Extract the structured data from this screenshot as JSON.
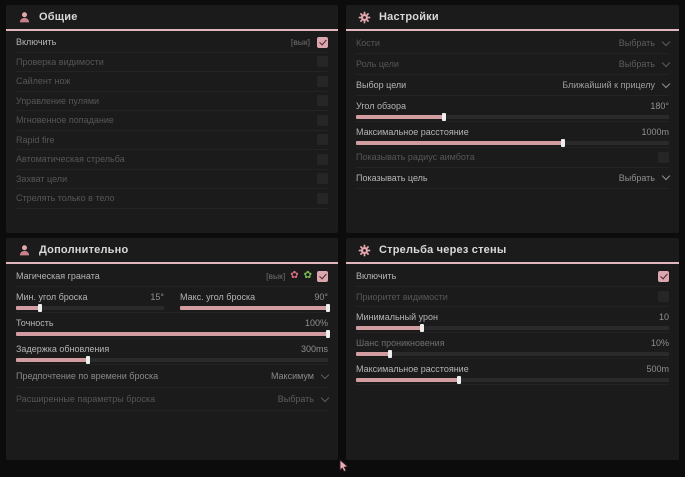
{
  "theme": {
    "accent_pink": "#d19da1",
    "header_underline": "#e2b6bd",
    "checkbox_checked": "#dca6ae",
    "panel_bg": "#1b1b1b",
    "page_bg": "#0c0c0c",
    "icon_green": "#7fbf57",
    "icon_red": "#d9717f"
  },
  "panels": {
    "general": {
      "title": "Общие",
      "icon": "person-icon",
      "rows": [
        {
          "label": "Включить",
          "badge": "[вык]",
          "checked": true
        },
        {
          "label": "Проверка видимости",
          "checked": false
        },
        {
          "label": "Сайлент нож",
          "checked": false
        },
        {
          "label": "Управление пулями",
          "checked": false
        },
        {
          "label": "Мгновенное попадание",
          "checked": false
        },
        {
          "label": "Rapid fire",
          "checked": false
        },
        {
          "label": "Автоматическая стрельба",
          "checked": false
        },
        {
          "label": "Захват цели",
          "checked": false
        },
        {
          "label": "Стрелять только в тело",
          "checked": false
        }
      ]
    },
    "settings": {
      "title": "Настройки",
      "icon": "gear-icon",
      "rows": {
        "bones": {
          "label": "Кости",
          "value": "Выбрать"
        },
        "target_role": {
          "label": "Роль цели",
          "value": "Выбрать"
        },
        "target_select": {
          "label": "Выбор цели",
          "value": "Ближайший к прицелу"
        },
        "fov": {
          "label": "Угол обзора",
          "value": "180°",
          "fill": 28
        },
        "max_distance": {
          "label": "Максимальное расстояние",
          "value": "1000m",
          "fill": 66
        },
        "show_radius": {
          "label": "Показывать радиус аимбота",
          "checked": false
        },
        "show_target": {
          "label": "Показывать цель",
          "value": "Выбрать"
        }
      }
    },
    "additional": {
      "title": "Дополнительно",
      "icon": "person-icon",
      "rows": {
        "magic_grenade": {
          "label": "Магическая граната",
          "badge": "[вык]",
          "checked": true,
          "icons": [
            "flower-icon-red",
            "flower-icon-green"
          ]
        },
        "min_angle": {
          "label": "Мин. угол броска",
          "value": "15°",
          "fill": 16
        },
        "max_angle": {
          "label": "Макс. угол броска",
          "value": "90°",
          "fill": 100
        },
        "accuracy": {
          "label": "Точность",
          "value": "100%",
          "fill": 100
        },
        "update_delay": {
          "label": "Задержка обновления",
          "value": "300ms",
          "fill": 23
        },
        "throw_time": {
          "label": "Предпочтение по времени броска",
          "value": "Максимум"
        },
        "advanced": {
          "label": "Расширенные параметры броска",
          "value": "Выбрать"
        }
      }
    },
    "wallshot": {
      "title": "Стрельба через стены",
      "icon": "gear-icon",
      "rows": {
        "enable": {
          "label": "Включить",
          "checked": true
        },
        "visibility_priority": {
          "label": "Приоритет видимости",
          "checked": false
        },
        "min_damage": {
          "label": "Минимальный урон",
          "value": "10",
          "fill": 21
        },
        "penetration": {
          "label": "Шанс проникновения",
          "value": "10%",
          "fill": 11
        },
        "max_distance": {
          "label": "Максимальное расстояние",
          "value": "500m",
          "fill": 33
        }
      }
    }
  },
  "cursor": {
    "icon": "pointer-cursor-icon"
  }
}
